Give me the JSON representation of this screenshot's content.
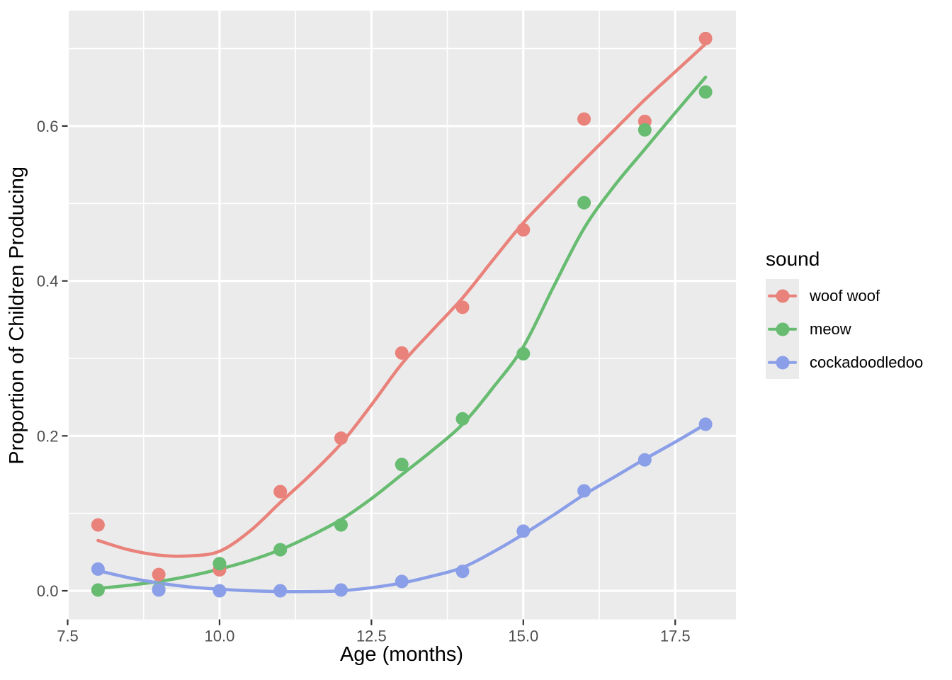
{
  "figure": {
    "background": "#FFFFFF",
    "panel_background": "#EBEBEB",
    "grid_color": "#FFFFFF",
    "tick_mark_color": "#333333",
    "tick_label_color": "#4D4D4D",
    "axis_title_color": "#000000"
  },
  "chart_data": {
    "type": "scatter",
    "smoother": "loess",
    "title": "",
    "xlabel": "Age (months)",
    "ylabel": "Proportion of Children Producing",
    "xlim": [
      7.5,
      18.5
    ],
    "ylim": [
      -0.037,
      0.749
    ],
    "grid": true,
    "x_major_ticks": [
      7.5,
      10.0,
      12.5,
      15.0,
      17.5
    ],
    "x_tick_labels": [
      "7.5",
      "10.0",
      "12.5",
      "15.0",
      "17.5"
    ],
    "x_minor_ticks": [
      8.75,
      11.25,
      13.75,
      16.25
    ],
    "y_major_ticks": [
      0.0,
      0.2,
      0.4,
      0.6
    ],
    "y_tick_labels": [
      "0.0",
      "0.2",
      "0.4",
      "0.6"
    ],
    "y_minor_ticks": [
      0.1,
      0.3,
      0.5,
      0.7
    ],
    "legend": {
      "title": "sound",
      "position": "right"
    },
    "x": [
      8,
      9,
      10,
      11,
      12,
      13,
      14,
      15,
      16,
      17,
      18
    ],
    "smooth_x": [
      8,
      8.5,
      9,
      9.5,
      10,
      10.5,
      11,
      11.5,
      12,
      12.5,
      13,
      13.5,
      14,
      14.5,
      15,
      15.5,
      16,
      16.5,
      17,
      17.5,
      18
    ],
    "series": [
      {
        "name": "woof woof",
        "color": "#E9827A",
        "points": [
          0.085,
          0.021,
          0.027,
          0.128,
          0.197,
          0.307,
          0.366,
          0.466,
          0.609,
          0.606,
          0.713
        ],
        "smooth_y": [
          0.065,
          0.053,
          0.046,
          0.045,
          0.051,
          0.077,
          0.114,
          0.15,
          0.19,
          0.24,
          0.293,
          0.336,
          0.378,
          0.427,
          0.475,
          0.516,
          0.556,
          0.595,
          0.634,
          0.67,
          0.706
        ]
      },
      {
        "name": "meow",
        "color": "#67BC71",
        "points": [
          0.001,
          0.002,
          0.035,
          0.053,
          0.085,
          0.163,
          0.222,
          0.306,
          0.501,
          0.595,
          0.644
        ],
        "smooth_y": [
          0.003,
          0.007,
          0.012,
          0.019,
          0.028,
          0.039,
          0.053,
          0.071,
          0.092,
          0.119,
          0.15,
          0.181,
          0.215,
          0.262,
          0.315,
          0.393,
          0.468,
          0.523,
          0.57,
          0.617,
          0.663
        ]
      },
      {
        "name": "cockadoodledoo",
        "color": "#8B9FE8",
        "points": [
          0.028,
          0.001,
          0.0,
          0.0,
          0.001,
          0.012,
          0.025,
          0.077,
          0.129,
          0.169,
          0.215
        ],
        "smooth_y": [
          0.026,
          0.017,
          0.01,
          0.005,
          0.002,
          0.0,
          -0.001,
          -0.001,
          0.0,
          0.004,
          0.01,
          0.019,
          0.03,
          0.05,
          0.073,
          0.098,
          0.124,
          0.147,
          0.17,
          0.192,
          0.215
        ]
      }
    ]
  }
}
